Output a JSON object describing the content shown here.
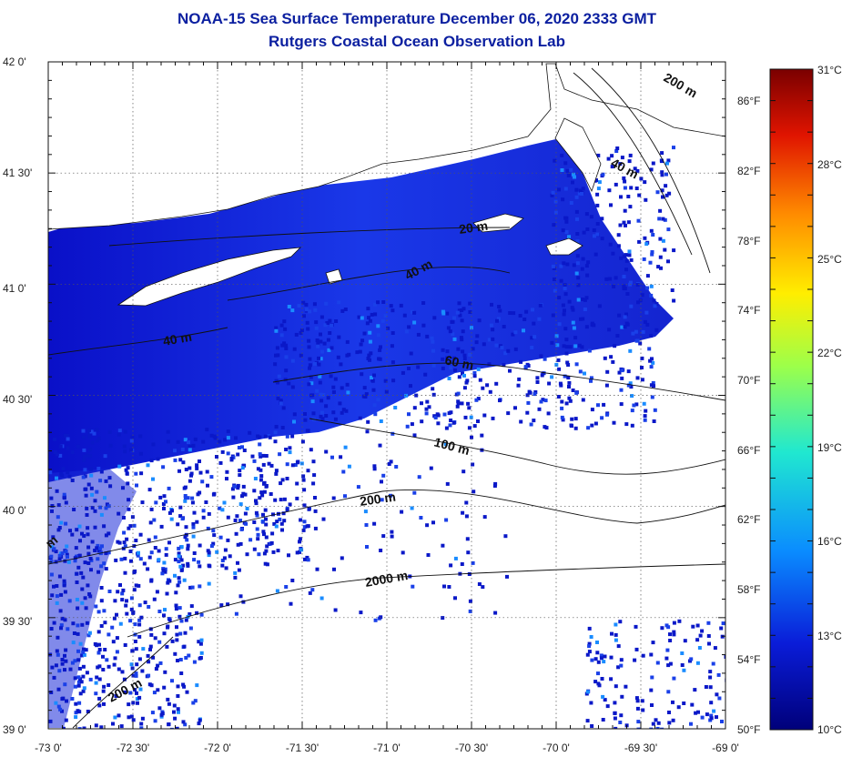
{
  "header": {
    "title": "NOAA-15 Sea Surface Temperature December 06, 2020 2333 GMT",
    "subtitle": "Rutgers Coastal Ocean Observation Lab"
  },
  "map": {
    "lon_range": [
      -73.0,
      -69.0
    ],
    "lat_range": [
      39.0,
      42.0
    ],
    "lon_tick_labels": [
      "-73 0'",
      "-72 30'",
      "-72 0'",
      "-71 30'",
      "-71 0'",
      "-70 30'",
      "-70 0'",
      "-69 30'",
      "-69 0'"
    ],
    "lat_tick_labels": [
      "42 0'",
      "41 30'",
      "41 0'",
      "40 30'",
      "40 0'",
      "39 30'",
      "39 0'"
    ],
    "fahrenheit_labels": [
      "86°F",
      "82°F",
      "78°F",
      "74°F",
      "70°F",
      "66°F",
      "62°F",
      "58°F",
      "54°F",
      "50°F"
    ],
    "depth_contour_labels": [
      "200 m",
      "40 m",
      "20 m",
      "40 m",
      "40 m",
      "60 m",
      "100 m",
      "200 m",
      "2000 m",
      "200 m",
      "m"
    ],
    "grid": true,
    "land_color": "#ffffff",
    "sst_color_dominant": "#0f1fd8"
  },
  "colorbar": {
    "min_c": 10,
    "max_c": 31,
    "celsius_labels": [
      "31°C",
      "28°C",
      "25°C",
      "22°C",
      "19°C",
      "16°C",
      "13°C",
      "10°C"
    ],
    "colors": [
      "#7a0000",
      "#e01400",
      "#ff8c00",
      "#ffee00",
      "#9cff4a",
      "#20e8d0",
      "#0a8cff",
      "#0a1cd8",
      "#00007a"
    ]
  }
}
